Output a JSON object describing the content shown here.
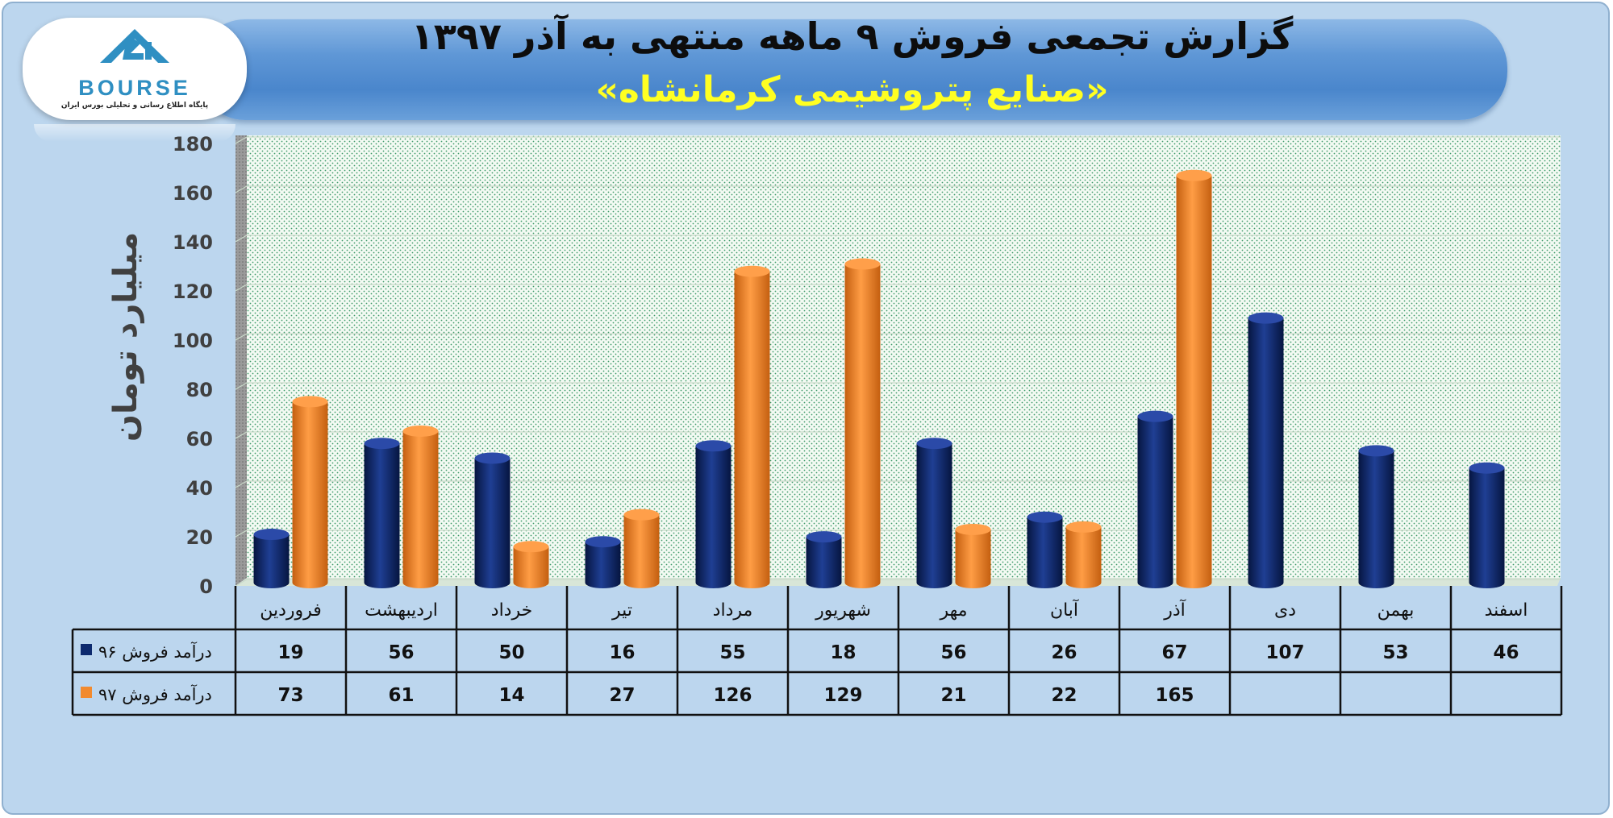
{
  "header": {
    "title_line1": "گزارش تجمعی فروش ۹ ماهه منتهی به آذر ۱۳۹۷",
    "title_line2": "«صنایع پتروشیمی کرمانشاه»"
  },
  "logo": {
    "wordmark": "BOURSE",
    "tagline": "پایگاه اطلاع رسانی و تحلیلی بورس ایران",
    "icon": "bourse-logo-icon"
  },
  "colors": {
    "series_96": "#0d2a6e",
    "series_97": "#f28a2e",
    "title_line2": "#ffff22",
    "header": "#4a86cc",
    "background": "#bcd6ee"
  },
  "chart_data": {
    "type": "bar",
    "title": "گزارش تجمعی فروش ۹ ماهه منتهی به آذر ۱۳۹۷",
    "subtitle": "«صنایع پتروشیمی کرمانشاه»",
    "ylabel": "میلیارد تومان",
    "xlabel": "",
    "ylim": [
      0,
      180
    ],
    "yticks": [
      0,
      20,
      40,
      60,
      80,
      100,
      120,
      140,
      160,
      180
    ],
    "grid": true,
    "legend": "data-table-left",
    "categories": [
      "فروردین",
      "اردیبهشت",
      "خرداد",
      "تیر",
      "مرداد",
      "شهریور",
      "مهر",
      "آبان",
      "آذر",
      "دی",
      "بهمن",
      "اسفند"
    ],
    "series": [
      {
        "name": "درآمد فروش ۹۶",
        "color": "#0d2a6e",
        "values": [
          19,
          56,
          50,
          16,
          55,
          18,
          56,
          26,
          67,
          107,
          53,
          46
        ]
      },
      {
        "name": "درآمد فروش ۹۷",
        "color": "#f28a2e",
        "values": [
          73,
          61,
          14,
          27,
          126,
          129,
          21,
          22,
          165,
          null,
          null,
          null
        ]
      }
    ]
  }
}
